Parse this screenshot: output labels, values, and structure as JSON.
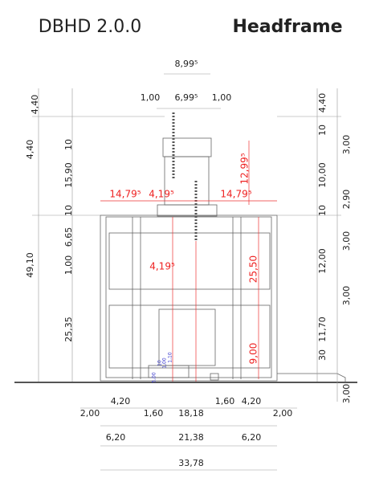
{
  "header": {
    "title": "DBHD 2.0.0",
    "subtitle": "Headframe"
  },
  "top_dims": [
    "8,99⁵",
    "1,00",
    "6,99⁵",
    "1,00"
  ],
  "left_dims": [
    "4,40",
    "4,40",
    "49,10",
    "10",
    "15,90",
    "10",
    "6,65",
    "1,00",
    "25,35"
  ],
  "right_dims": [
    "4,40",
    "10",
    "10,00",
    "10",
    "12,00",
    "30",
    "11,70",
    "3,00",
    "2,90",
    "3,00",
    "3,00",
    "3,00"
  ],
  "red_dims": [
    "14,79⁵",
    "4,19⁵",
    "14,79⁵",
    "12,99⁵",
    "4,19⁵",
    "25,50",
    "9,00"
  ],
  "blue_dims": [
    "5,00",
    "10",
    "1,00",
    "1,10"
  ],
  "bottom_dims": [
    "4,20",
    "1,60",
    "4,20",
    "2,00",
    "1,60",
    "18,18",
    "2,00",
    "6,20",
    "21,38",
    "6,20",
    "33,78"
  ]
}
